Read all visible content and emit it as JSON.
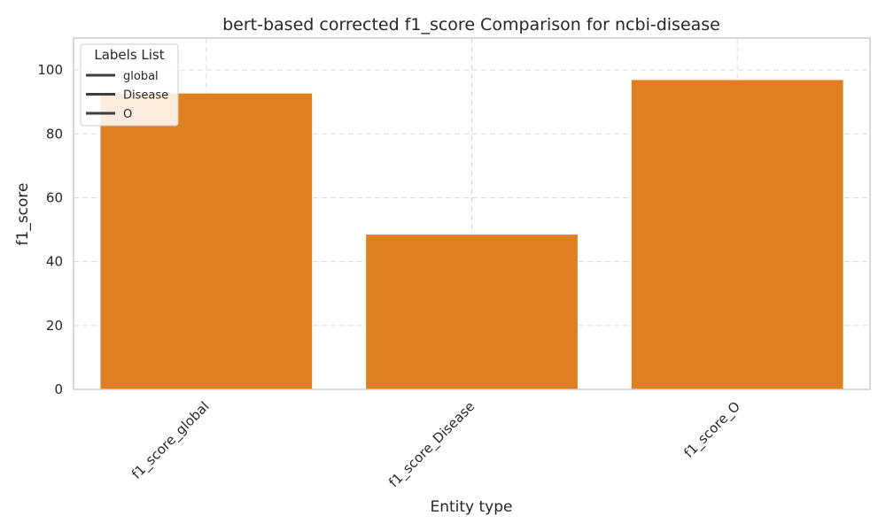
{
  "chart_data": {
    "type": "bar",
    "title": "bert-based corrected f1_score Comparison for ncbi-disease",
    "xlabel": "Entity type",
    "ylabel": "f1_score",
    "categories": [
      "f1_score_global",
      "f1_score_Disease",
      "f1_score_O"
    ],
    "values": [
      92.8,
      48.6,
      97.0
    ],
    "ylim": [
      0,
      110
    ],
    "yticks": [
      0,
      20,
      40,
      60,
      80,
      100
    ],
    "grid": true,
    "bar_color": "#e07f1f",
    "legend": {
      "title": "Labels List",
      "placement": "top-left",
      "entries": [
        "global",
        "Disease",
        "O"
      ]
    }
  }
}
